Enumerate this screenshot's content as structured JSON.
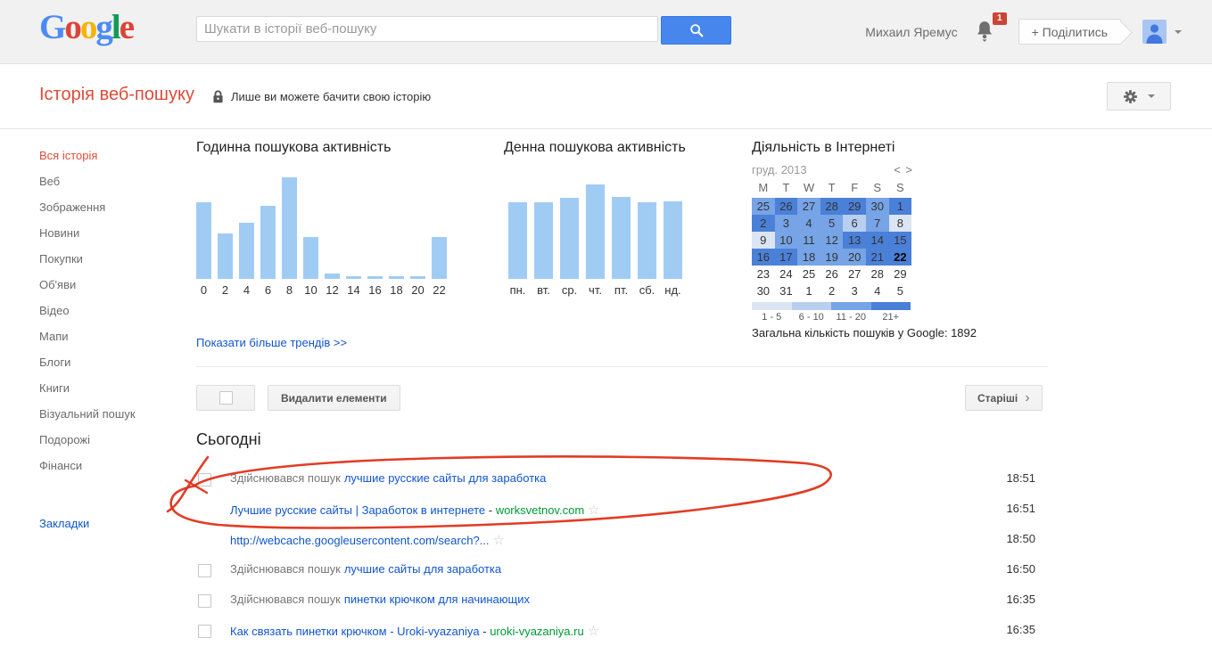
{
  "topbar": {
    "logo_text": "Google",
    "logo_colors": [
      "#4c8bf5",
      "#db4437",
      "#f4b400",
      "#4c8bf5",
      "#0f9d58",
      "#db4437"
    ],
    "search_placeholder": "Шукати в історії веб-пошуку",
    "user_name": "Михаил Яремус",
    "notification_count": "1",
    "share_label": "+ Поділитись"
  },
  "header": {
    "title": "Історія веб-пошуку",
    "privacy_note": "Лише ви можете бачити свою історію"
  },
  "sidebar": {
    "items": [
      {
        "label": "Вся історія",
        "active": true
      },
      {
        "label": "Веб"
      },
      {
        "label": "Зображення"
      },
      {
        "label": "Новини"
      },
      {
        "label": "Покупки"
      },
      {
        "label": "Об'яви"
      },
      {
        "label": "Відео"
      },
      {
        "label": "Мапи"
      },
      {
        "label": "Блоги"
      },
      {
        "label": "Книги"
      },
      {
        "label": "Візуальний пошук"
      },
      {
        "label": "Подорожі"
      },
      {
        "label": "Фінанси"
      }
    ],
    "footer_link": "Закладки"
  },
  "charts": {
    "hourly": {
      "title": "Годинна пошукова активність",
      "chart_data": {
        "type": "bar",
        "categories": [
          "0",
          "2",
          "4",
          "6",
          "8",
          "10",
          "12",
          "14",
          "16",
          "18",
          "20",
          "22"
        ],
        "values": [
          75,
          45,
          55,
          72,
          100,
          41,
          5,
          3,
          3,
          3,
          3,
          41
        ],
        "note": "values are percent of max bar; no numeric axis shown"
      }
    },
    "daily": {
      "title": "Денна пошукова активність",
      "chart_data": {
        "type": "bar",
        "categories": [
          "пн.",
          "вт.",
          "ср.",
          "чт.",
          "пт.",
          "сб.",
          "нд."
        ],
        "values": [
          81,
          81,
          86,
          100,
          87,
          81,
          82
        ],
        "note": "values are percent of max bar; no numeric axis shown"
      }
    }
  },
  "calendar": {
    "title": "Діяльність в Інтернеті",
    "month": "груд. 2013",
    "nav_prev": "<",
    "nav_next": ">",
    "weekdays": [
      "M",
      "T",
      "W",
      "T",
      "F",
      "S",
      "S"
    ],
    "weeks": [
      [
        {
          "d": "25",
          "l": 3
        },
        {
          "d": "26",
          "l": 4
        },
        {
          "d": "27",
          "l": 3
        },
        {
          "d": "28",
          "l": 4
        },
        {
          "d": "29",
          "l": 4
        },
        {
          "d": "30",
          "l": 3
        },
        {
          "d": "1",
          "l": 4
        }
      ],
      [
        {
          "d": "2",
          "l": 4
        },
        {
          "d": "3",
          "l": 3
        },
        {
          "d": "4",
          "l": 3
        },
        {
          "d": "5",
          "l": 3
        },
        {
          "d": "6",
          "l": 2
        },
        {
          "d": "7",
          "l": 3
        },
        {
          "d": "8",
          "l": 1
        }
      ],
      [
        {
          "d": "9",
          "l": 1
        },
        {
          "d": "10",
          "l": 3
        },
        {
          "d": "11",
          "l": 3
        },
        {
          "d": "12",
          "l": 3
        },
        {
          "d": "13",
          "l": 4
        },
        {
          "d": "14",
          "l": 4
        },
        {
          "d": "15",
          "l": 4
        }
      ],
      [
        {
          "d": "16",
          "l": 4
        },
        {
          "d": "17",
          "l": 4
        },
        {
          "d": "18",
          "l": 3
        },
        {
          "d": "19",
          "l": 3
        },
        {
          "d": "20",
          "l": 3
        },
        {
          "d": "21",
          "l": 4
        },
        {
          "d": "22",
          "l": 4,
          "bold": true
        }
      ],
      [
        {
          "d": "23",
          "l": 0
        },
        {
          "d": "24",
          "l": 0
        },
        {
          "d": "25",
          "l": 0
        },
        {
          "d": "26",
          "l": 0
        },
        {
          "d": "27",
          "l": 0
        },
        {
          "d": "28",
          "l": 0
        },
        {
          "d": "29",
          "l": 0
        }
      ],
      [
        {
          "d": "30",
          "l": 0
        },
        {
          "d": "31",
          "l": 0
        },
        {
          "d": "1",
          "l": 0
        },
        {
          "d": "2",
          "l": 0
        },
        {
          "d": "3",
          "l": 0
        },
        {
          "d": "4",
          "l": 0
        },
        {
          "d": "5",
          "l": 0
        }
      ]
    ],
    "legend_labels": [
      "1 - 5",
      "6 - 10",
      "11 - 20",
      "21+"
    ],
    "total_label": "Загальна кількість пошуків у Google:",
    "total_value": "1892"
  },
  "trends_link": "Показати більше трендів >>",
  "toolbar": {
    "delete_label": "Видалити елементи",
    "older_label": "Старіші",
    "older_chevron": "›"
  },
  "list": {
    "section_title": "Сьогодні",
    "rows": [
      {
        "checkbox": true,
        "prefix": "Здійснювався пошук",
        "link": "лучшие русские сайты для заработка",
        "time": "18:51"
      },
      {
        "checkbox": false,
        "link": "Лучшие русские сайты | Заработок в интернете",
        "sep": " - ",
        "domain": "worksvetnov.com",
        "star": true,
        "time": "16:51"
      },
      {
        "checkbox": false,
        "link": "http://webcache.googleusercontent.com/search?...",
        "star": true,
        "time": "18:50"
      },
      {
        "checkbox": true,
        "prefix": "Здійснювався пошук",
        "link": "лучшие сайты для заработка",
        "time": "16:50"
      },
      {
        "checkbox": true,
        "prefix": "Здійснювався пошук",
        "link": "пинетки крючком для начинающих",
        "time": "16:35"
      },
      {
        "checkbox": true,
        "link": "Как связать пинетки крючком - Uroki-vyazaniya",
        "sep": " - ",
        "domain": "uroki-vyazaniya.ru",
        "star": true,
        "time": "16:35",
        "partial": true
      }
    ]
  },
  "colors": {
    "bar_blue": "#a0ccf4",
    "button_blue": "#4787ed",
    "cal_levels": [
      "transparent",
      "#dce5f3",
      "#b9cff0",
      "#76a4e6",
      "#4b80d8"
    ],
    "link_blue": "#1155cc",
    "domain_green": "#009933",
    "active_red": "#dd4b39",
    "badge_red": "#cb4437",
    "annotation_red": "#e03119"
  }
}
